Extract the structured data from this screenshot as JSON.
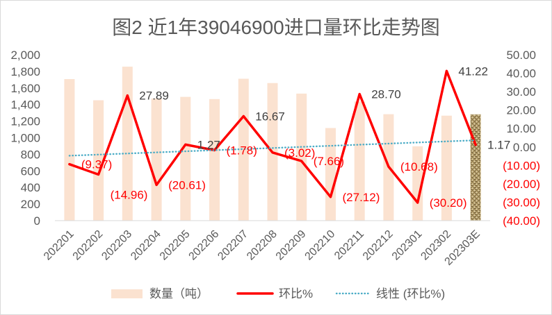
{
  "chart_data": {
    "type": "bar",
    "title": "图2 近1年39046900进口量环比走势图",
    "categories": [
      "202201",
      "202202",
      "202203",
      "202204",
      "202205",
      "202206",
      "202207",
      "202208",
      "202209",
      "202210",
      "202211",
      "202212",
      "202301",
      "202302",
      "202303E"
    ],
    "series": [
      {
        "name": "数量（吨）",
        "type": "bar",
        "axis": "left",
        "values": [
          1707,
          1452,
          1857,
          1474,
          1493,
          1466,
          1711,
          1659,
          1532,
          1117,
          1437,
          1284,
          896,
          1266,
          1281
        ],
        "textured_indices": [
          14
        ]
      },
      {
        "name": "环比%",
        "type": "line",
        "axis": "right",
        "values": [
          -9.37,
          -14.96,
          27.89,
          -20.61,
          1.27,
          -1.78,
          16.67,
          -3.02,
          -7.66,
          -27.12,
          28.7,
          -10.68,
          -30.2,
          41.22,
          1.17
        ],
        "data_labels": [
          "(9.37)",
          "(14.96)",
          "27.89",
          "(20.61)",
          "1.27",
          "(1.78)",
          "16.67",
          "(3.02)",
          "(7.66)",
          "(27.12)",
          "28.70",
          "(10.68)",
          "(30.20)",
          "41.22",
          "1.17"
        ],
        "trendline": {
          "type": "linear",
          "name": "线性 (环比%)"
        }
      }
    ],
    "y_left": {
      "range": [
        0,
        2000
      ],
      "tick_labels": [
        "0",
        "200",
        "400",
        "600",
        "800",
        "1,000",
        "1,200",
        "1,400",
        "1,600",
        "1,800",
        "2,000"
      ]
    },
    "y_right": {
      "range": [
        -40,
        50
      ],
      "tick_labels": [
        "(40.00)",
        "(30.00)",
        "(20.00)",
        "(10.00)",
        "0.00",
        "10.00",
        "20.00",
        "30.00",
        "40.00",
        "50.00"
      ]
    },
    "grid": false,
    "legend": "bottom",
    "colors": {
      "bar": "#FBE2D0",
      "bar_textured": "#A38D5C",
      "bar_textured_grain": "#D5C397",
      "bar_textured_dark": "#6A5633",
      "bar_textured_outline": "#E8DCC0",
      "line": "#FF0000",
      "trendline": "#4BACC6",
      "negative_text": "#FF0000",
      "label_text": "#404040",
      "text": "#595959",
      "axis_line": "#D9D9D9"
    }
  }
}
